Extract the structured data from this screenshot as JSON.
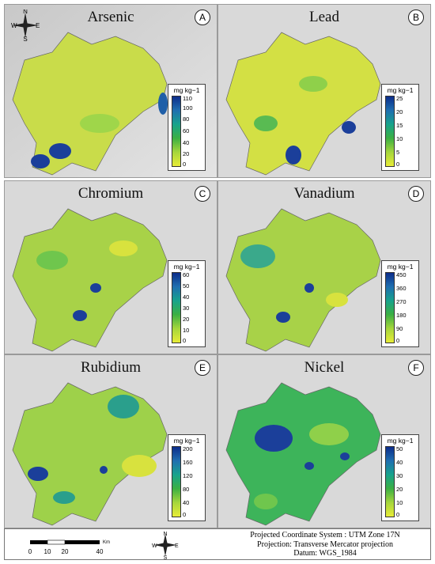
{
  "panels": [
    {
      "title": "Arsenic",
      "letter": "A",
      "unit": "mg kg−1",
      "ticks": [
        "110",
        "100",
        "80",
        "60",
        "40",
        "20",
        "0"
      ]
    },
    {
      "title": "Lead",
      "letter": "B",
      "unit": "mg kg−1",
      "ticks": [
        "25",
        "20",
        "15",
        "10",
        "5",
        "0"
      ]
    },
    {
      "title": "Chromium",
      "letter": "C",
      "unit": "mg kg−1",
      "ticks": [
        "60",
        "50",
        "40",
        "30",
        "20",
        "10",
        "0"
      ]
    },
    {
      "title": "Vanadium",
      "letter": "D",
      "unit": "mg kg−1",
      "ticks": [
        "450",
        "360",
        "270",
        "180",
        "90",
        "0"
      ]
    },
    {
      "title": "Rubidium",
      "letter": "E",
      "unit": "mg kg−1",
      "ticks": [
        "200",
        "160",
        "120",
        "80",
        "40",
        "0"
      ]
    },
    {
      "title": "Nickel",
      "letter": "F",
      "unit": "mg kg−1",
      "ticks": [
        "50",
        "40",
        "30",
        "20",
        "10",
        "0"
      ]
    }
  ],
  "compass": {
    "n": "N",
    "s": "S",
    "e": "E",
    "w": "W"
  },
  "scale_bar": {
    "labels": [
      "0",
      "10",
      "20",
      "40"
    ],
    "unit": "Km"
  },
  "projection": {
    "line1": "Projected Coordinate System : UTM Zone 17N",
    "line2": "Projection: Transverse Mercator projection",
    "line3": "Datum: WGS_1984"
  },
  "colors": {
    "low": "#e8ec38",
    "mid": "#3cb043",
    "high": "#0c2d8a"
  }
}
